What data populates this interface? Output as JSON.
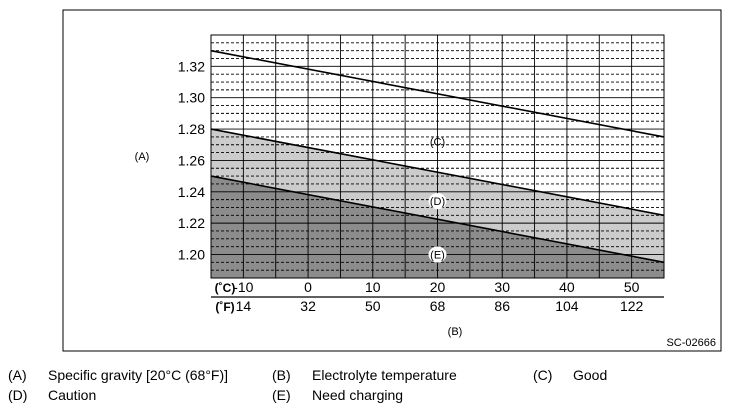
{
  "chart_data": {
    "type": "line",
    "ylabel": "(A)",
    "xlabel": "(B)",
    "code": "SC-02666",
    "ylim": [
      1.185,
      1.34
    ],
    "xlim": [
      -15,
      55
    ],
    "yticks": [
      "1.32",
      "1.30",
      "1.28",
      "1.26",
      "1.24",
      "1.22",
      "1.20"
    ],
    "ytick_values": [
      1.32,
      1.3,
      1.28,
      1.26,
      1.24,
      1.22,
      1.2
    ],
    "x_celsius": {
      "unit": "(˚C)",
      "values": [
        -10,
        0,
        10,
        20,
        30,
        40,
        50
      ],
      "labels": [
        "-10",
        "0",
        "10",
        "20",
        "30",
        "40",
        "50"
      ]
    },
    "x_fahrenheit": {
      "unit": "(˚F)",
      "labels": [
        "14",
        "32",
        "50",
        "68",
        "86",
        "104",
        "122"
      ]
    },
    "grid": true,
    "series": [
      {
        "x": [
          -15,
          55
        ],
        "y": [
          1.33,
          1.275
        ]
      },
      {
        "x": [
          -15,
          55
        ],
        "y": [
          1.28,
          1.225
        ]
      },
      {
        "x": [
          -15,
          55
        ],
        "y": [
          1.25,
          1.195
        ]
      }
    ],
    "regions": [
      {
        "label": "(C)",
        "x": 20,
        "y": 1.272
      },
      {
        "label": "(D)",
        "x": 20,
        "y": 1.234
      },
      {
        "label": "(E)",
        "x": 20,
        "y": 1.2
      }
    ],
    "colors": {
      "caution": "#cccccc",
      "charge": "#8c8c8c",
      "good": "#ffffff",
      "grid": "#000000"
    }
  },
  "legend": [
    [
      {
        "key": "(A)",
        "text": "Specific gravity [20°C (68°F)]"
      },
      {
        "key": "(B)",
        "text": "Electrolyte temperature"
      },
      {
        "key": "(C)",
        "text": "Good"
      }
    ],
    [
      {
        "key": "(D)",
        "text": "Caution"
      },
      {
        "key": "(E)",
        "text": "Need charging"
      }
    ]
  ]
}
